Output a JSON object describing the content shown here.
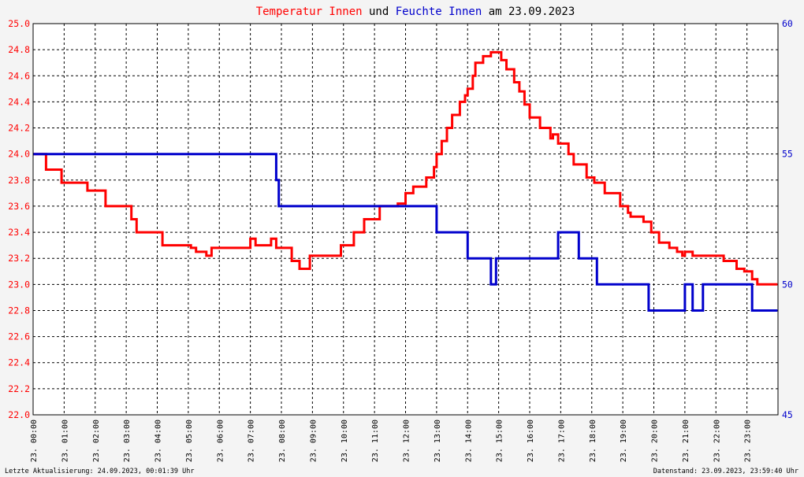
{
  "chart_data": {
    "type": "line",
    "title_parts": [
      {
        "text": "Temperatur Innen",
        "color": "#ff0000"
      },
      {
        "text": " und ",
        "color": "#000000"
      },
      {
        "text": "Feuchte Innen",
        "color": "#0000cc"
      },
      {
        "text": " am 23.09.2023",
        "color": "#000000"
      }
    ],
    "x_ticks": [
      "23. 00:00",
      "23. 01:00",
      "23. 02:00",
      "23. 03:00",
      "23. 04:00",
      "23. 05:00",
      "23. 06:00",
      "23. 07:00",
      "23. 08:00",
      "23. 09:00",
      "23. 10:00",
      "23. 11:00",
      "23. 12:00",
      "23. 13:00",
      "23. 14:00",
      "23. 15:00",
      "23. 16:00",
      "23. 17:00",
      "23. 18:00",
      "23. 19:00",
      "23. 20:00",
      "23. 21:00",
      "23. 22:00",
      "23. 23:00"
    ],
    "xlim": [
      "23.09.2023 00:00",
      "24.09.2023 00:00"
    ],
    "y_left": {
      "lim": [
        22.0,
        25.0
      ],
      "ticks": [
        "22.0",
        "22.2",
        "22.4",
        "22.6",
        "22.8",
        "23.0",
        "23.2",
        "23.4",
        "23.6",
        "23.8",
        "24.0",
        "24.2",
        "24.4",
        "24.6",
        "24.8",
        "25.0"
      ],
      "color": "#ff0000"
    },
    "y_right": {
      "lim": [
        45,
        60
      ],
      "ticks": [
        "45",
        "50",
        "55",
        "60"
      ],
      "color": "#0000cc"
    },
    "grid": true,
    "series": [
      {
        "name": "Temperatur Innen",
        "axis": "left",
        "color": "#ff0000",
        "step": true,
        "x": [
          "00:00",
          "00:25",
          "00:35",
          "00:55",
          "01:20",
          "01:45",
          "02:20",
          "03:10",
          "03:20",
          "04:05",
          "04:10",
          "04:35",
          "05:05",
          "05:15",
          "05:35",
          "05:45",
          "06:15",
          "07:00",
          "07:10",
          "07:40",
          "07:50",
          "08:20",
          "08:35",
          "08:55",
          "09:30",
          "09:55",
          "10:20",
          "10:40",
          "10:55",
          "11:00",
          "11:10",
          "11:35",
          "11:45",
          "12:00",
          "12:15",
          "12:40",
          "12:55",
          "13:00",
          "13:10",
          "13:20",
          "13:30",
          "13:45",
          "13:55",
          "14:00",
          "14:10",
          "14:15",
          "14:30",
          "14:45",
          "14:55",
          "15:05",
          "15:15",
          "15:30",
          "15:40",
          "15:50",
          "16:00",
          "16:20",
          "16:40",
          "16:45",
          "16:55",
          "17:15",
          "17:25",
          "17:50",
          "18:05",
          "18:25",
          "18:55",
          "19:10",
          "19:15",
          "19:40",
          "19:55",
          "20:10",
          "20:30",
          "20:45",
          "20:55",
          "21:00",
          "21:15",
          "22:00",
          "22:15",
          "22:40",
          "22:55",
          "23:10",
          "23:20",
          "23:59"
        ],
        "y": [
          24.0,
          23.88,
          23.88,
          23.78,
          23.78,
          23.72,
          23.6,
          23.5,
          23.4,
          23.4,
          23.3,
          23.3,
          23.28,
          23.25,
          23.22,
          23.28,
          23.28,
          23.35,
          23.3,
          23.35,
          23.28,
          23.18,
          23.12,
          23.22,
          23.22,
          23.3,
          23.4,
          23.5,
          23.5,
          23.5,
          23.6,
          23.6,
          23.62,
          23.7,
          23.75,
          23.82,
          23.9,
          24.0,
          24.1,
          24.2,
          24.3,
          24.4,
          24.45,
          24.5,
          24.6,
          24.7,
          24.75,
          24.78,
          24.78,
          24.72,
          24.65,
          24.55,
          24.48,
          24.38,
          24.28,
          24.2,
          24.12,
          24.15,
          24.08,
          24.0,
          23.92,
          23.82,
          23.78,
          23.7,
          23.6,
          23.55,
          23.52,
          23.48,
          23.4,
          23.32,
          23.28,
          23.25,
          23.22,
          23.25,
          23.22,
          23.22,
          23.18,
          23.12,
          23.1,
          23.04,
          23.0,
          23.0
        ]
      },
      {
        "name": "Feuchte Innen",
        "axis": "right",
        "color": "#0000cc",
        "step": true,
        "x": [
          "00:00",
          "07:45",
          "07:50",
          "07:55",
          "08:00",
          "09:00",
          "10:00",
          "11:00",
          "12:00",
          "12:55",
          "13:00",
          "13:55",
          "14:00",
          "14:35",
          "14:45",
          "14:55",
          "15:00",
          "16:00",
          "16:45",
          "16:55",
          "17:20",
          "17:35",
          "17:50",
          "18:05",
          "18:10",
          "19:00",
          "19:40",
          "19:50",
          "20:00",
          "20:10",
          "20:55",
          "21:00",
          "21:15",
          "21:35",
          "22:00",
          "23:00",
          "23:10",
          "23:59"
        ],
        "y": [
          55,
          55,
          54,
          53,
          53,
          53,
          53,
          53,
          53,
          53,
          52,
          52,
          51,
          51,
          50,
          51,
          51,
          51,
          51,
          52,
          52,
          51,
          51,
          51,
          50,
          50,
          50,
          49,
          49,
          49,
          49,
          50,
          49,
          50,
          50,
          50,
          49,
          49
        ]
      }
    ],
    "footer_left": "Letzte Aktualisierung: 24.09.2023, 00:01:39 Uhr",
    "footer_right": "Datenstand: 23.09.2023, 23:59:40 Uhr",
    "colors": {
      "background": "#f4f4f4",
      "plot_background": "#ffffff",
      "grid": "#000000"
    }
  }
}
